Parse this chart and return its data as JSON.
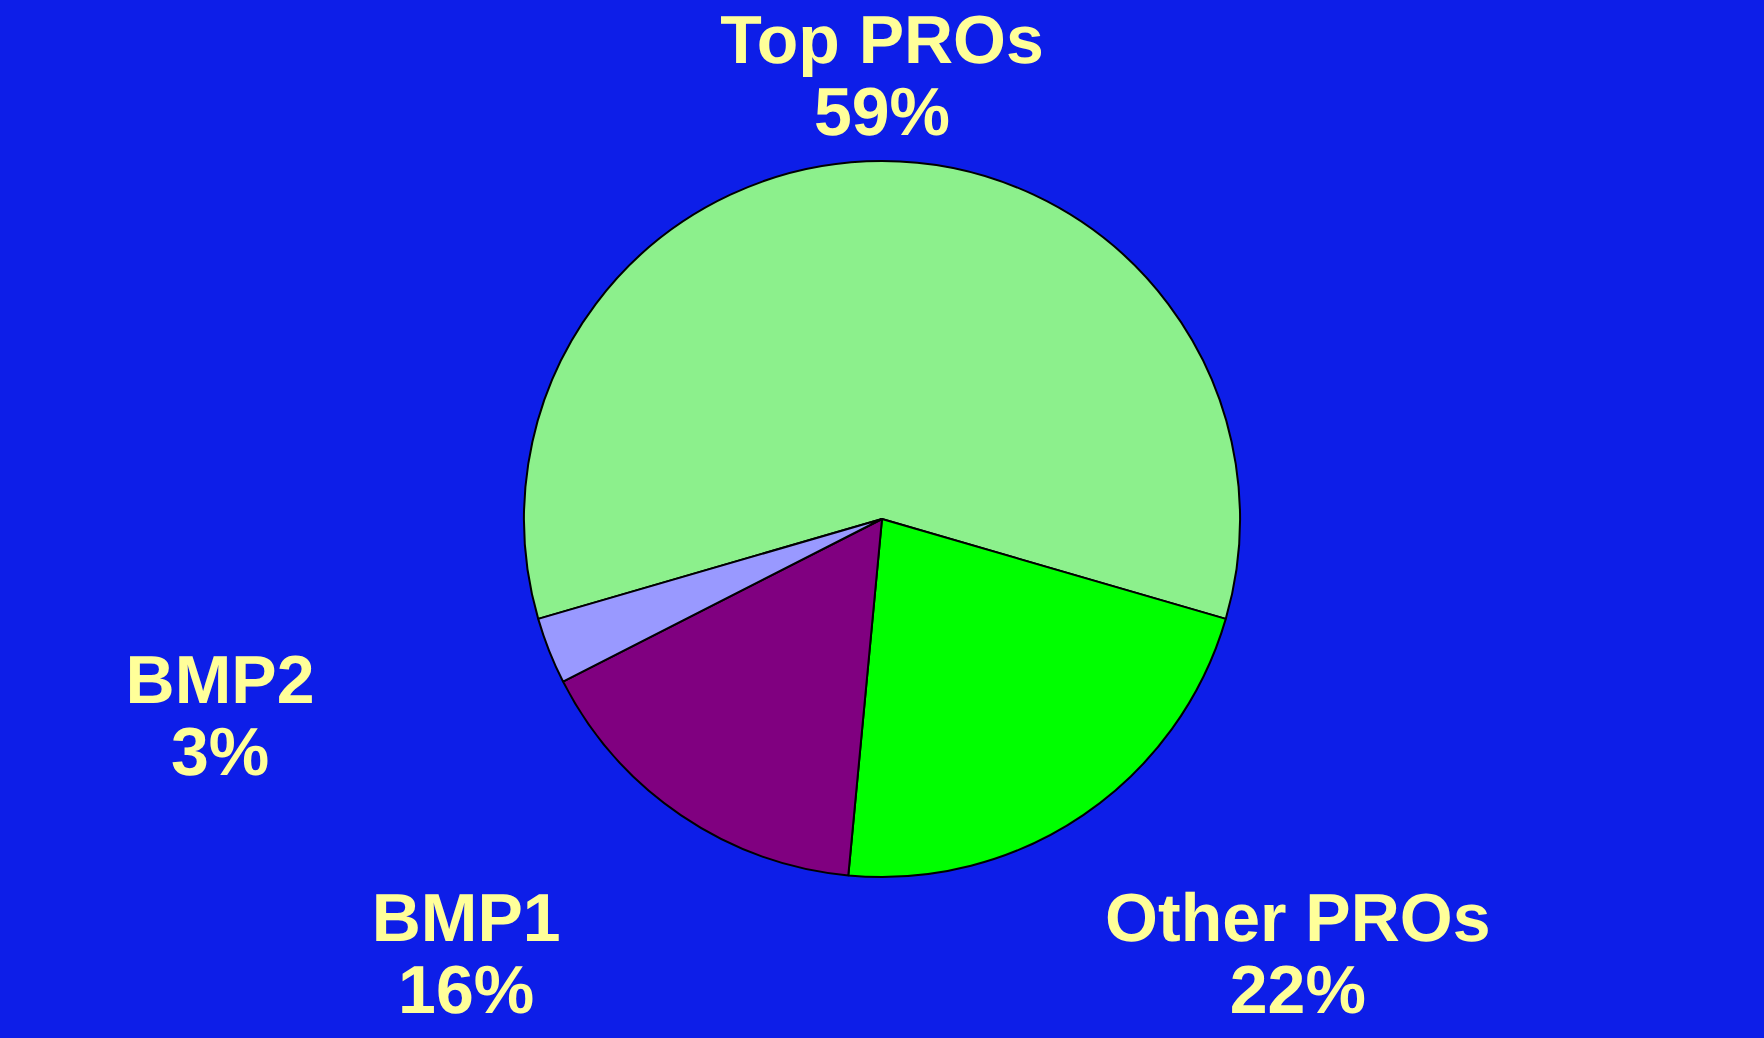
{
  "chart_data": {
    "type": "pie",
    "categories": [
      "Top PROs",
      "Other PROs",
      "BMP1",
      "BMP2"
    ],
    "values": [
      59,
      22,
      16,
      3
    ],
    "value_labels": [
      "59%",
      "22%",
      "16%",
      "3%"
    ],
    "colors": [
      "#8cf08c",
      "#00ff00",
      "#800080",
      "#9999ff"
    ],
    "legend": false
  }
}
